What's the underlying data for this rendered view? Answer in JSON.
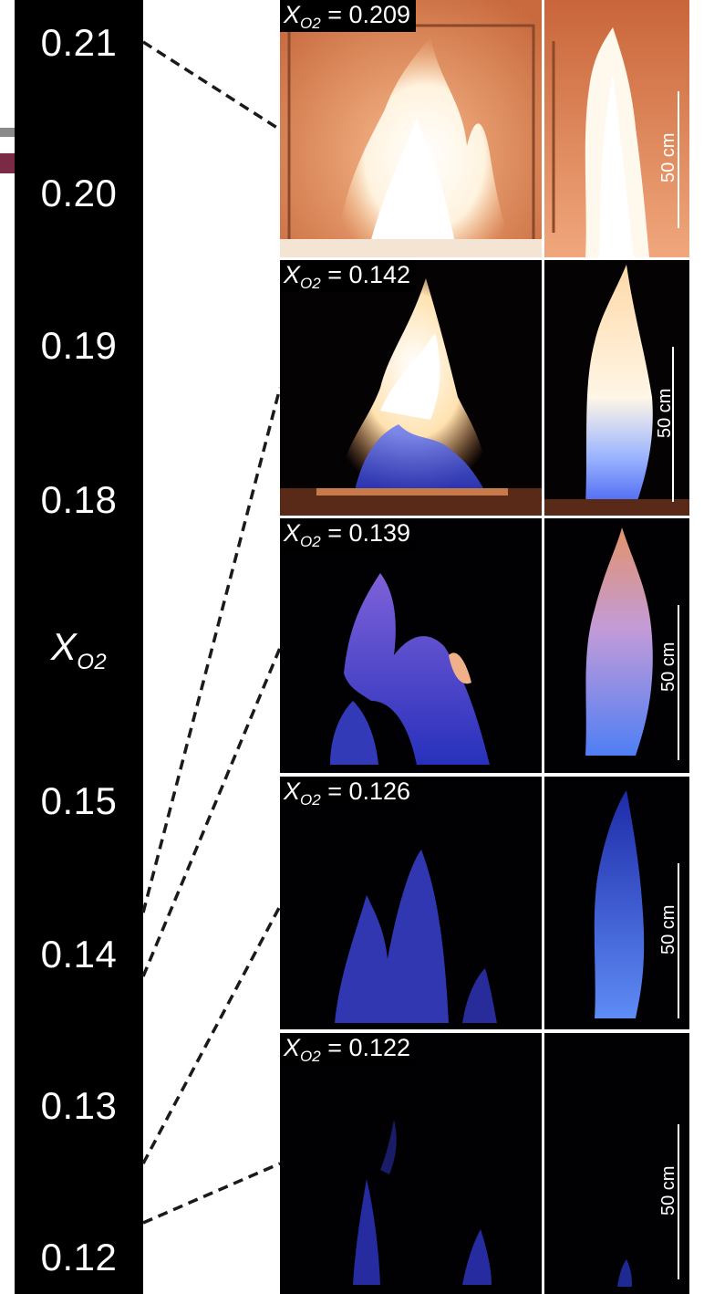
{
  "axis": {
    "symbol": "X",
    "subscript": "O2",
    "ticks": [
      {
        "label": "0.21",
        "value": 0.21
      },
      {
        "label": "0.20",
        "value": 0.2
      },
      {
        "label": "0.19",
        "value": 0.19
      },
      {
        "label": "0.18",
        "value": 0.18
      },
      {
        "label": "0.15",
        "value": 0.15
      },
      {
        "label": "0.14",
        "value": 0.14
      },
      {
        "label": "0.13",
        "value": 0.13
      },
      {
        "label": "0.12",
        "value": 0.12
      }
    ]
  },
  "colors": {
    "scale_background": "#000000",
    "panel_background": "#000000",
    "text": "#ffffff",
    "accent_gray": "#8a8a8a",
    "accent_maroon": "#7a2a44",
    "flame_bright": "#fff4dc",
    "flame_orange": "#f3a15a",
    "flame_blue": "#3a4fe0"
  },
  "panels": [
    {
      "label_prefix": "X",
      "label_subscript": "O2",
      "value_text": "= 0.209",
      "x_o2": 0.209,
      "scale_text": "50 cm",
      "front_view": "front-view-photo",
      "side_view": "side-view-photo"
    },
    {
      "label_prefix": "X",
      "label_subscript": "O2",
      "value_text": "= 0.142",
      "x_o2": 0.142,
      "scale_text": "50 cm",
      "front_view": "front-view-photo",
      "side_view": "side-view-photo"
    },
    {
      "label_prefix": "X",
      "label_subscript": "O2",
      "value_text": "= 0.139",
      "x_o2": 0.139,
      "scale_text": "50 cm",
      "front_view": "front-view-photo",
      "side_view": "side-view-photo"
    },
    {
      "label_prefix": "X",
      "label_subscript": "O2",
      "value_text": "= 0.126",
      "x_o2": 0.126,
      "scale_text": "50 cm",
      "front_view": "front-view-photo",
      "side_view": "side-view-photo"
    },
    {
      "label_prefix": "X",
      "label_subscript": "O2",
      "value_text": "= 0.122",
      "x_o2": 0.122,
      "scale_text": "50 cm",
      "front_view": "front-view-photo",
      "side_view": "side-view-photo"
    }
  ]
}
